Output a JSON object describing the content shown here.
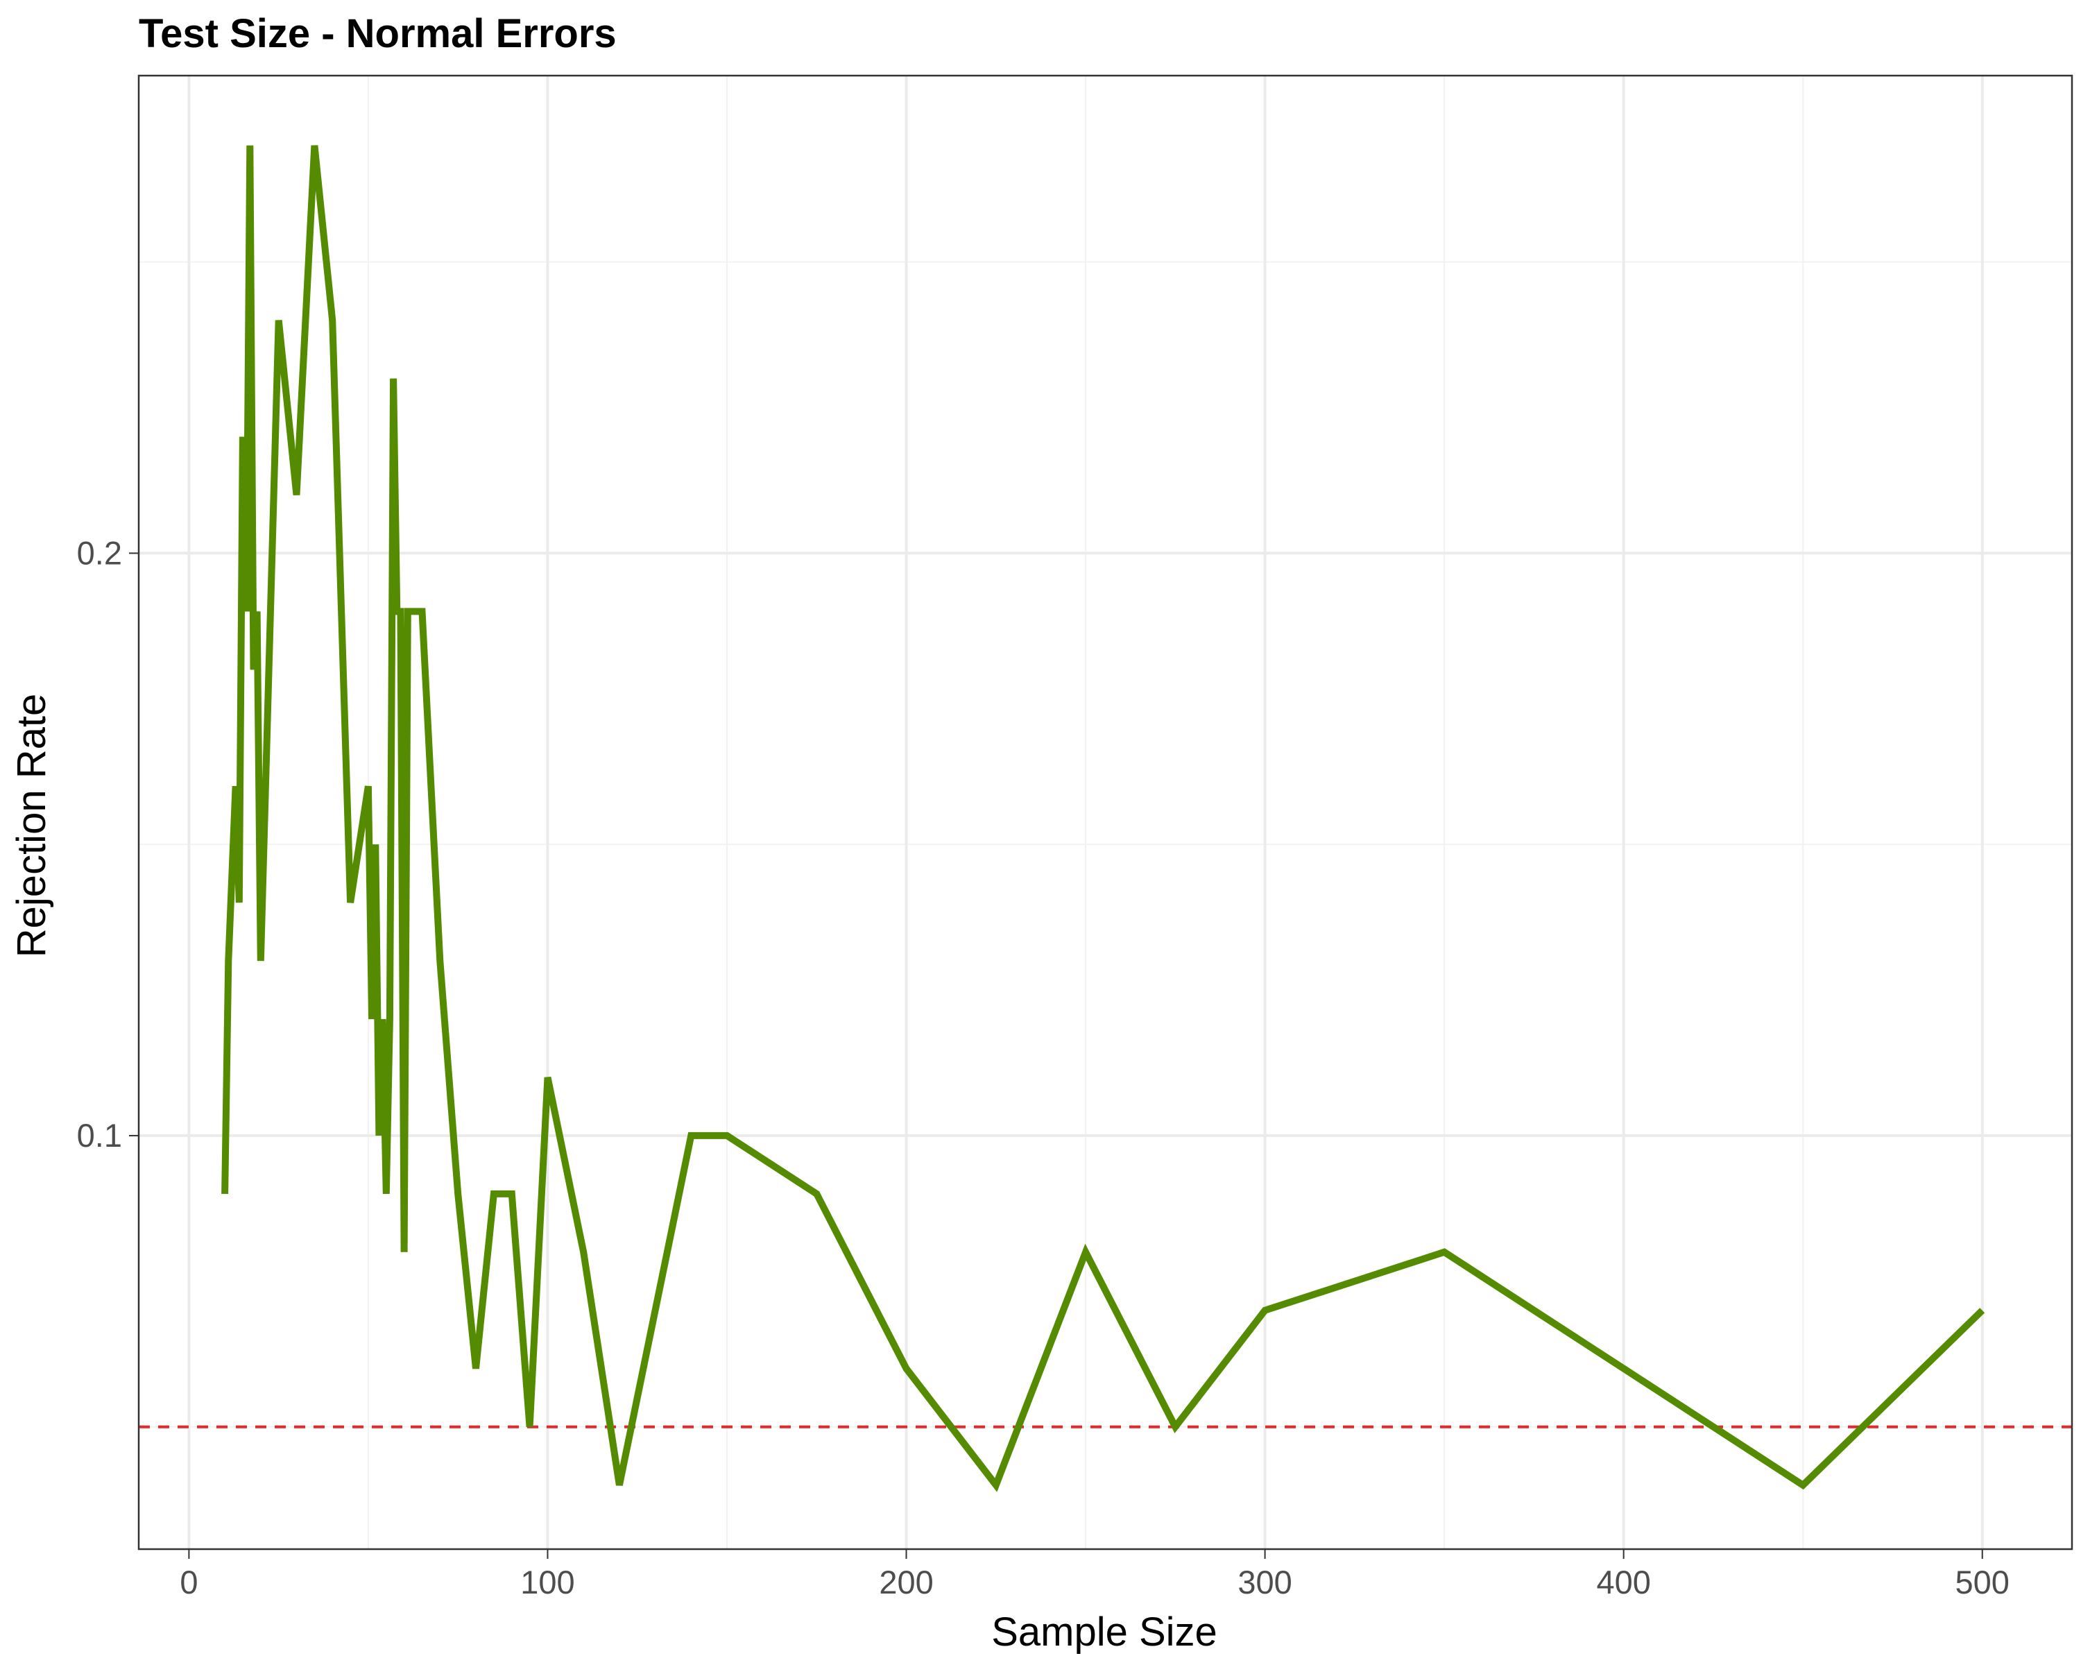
{
  "chart_data": {
    "type": "line",
    "title": "Test Size - Normal Errors",
    "xlabel": "Sample Size",
    "ylabel": "Rejection Rate",
    "xlim": [
      -14,
      525
    ],
    "ylim": [
      0.029,
      0.282
    ],
    "x_ticks": [
      0,
      100,
      200,
      300,
      400,
      500
    ],
    "x_tick_labels": [
      "0",
      "100",
      "200",
      "300",
      "400",
      "500"
    ],
    "y_ticks": [
      0.1,
      0.2
    ],
    "y_tick_labels": [
      "0.1",
      "0.2"
    ],
    "grid": true,
    "series": [
      {
        "color": "#548b00",
        "x": [
          10,
          11,
          13,
          14,
          15,
          16,
          17,
          18,
          19,
          20,
          25,
          30,
          35,
          40,
          45,
          50,
          51,
          52,
          53,
          54,
          55,
          56,
          57,
          58,
          59,
          60,
          61,
          62,
          63,
          65,
          70,
          75,
          80,
          85,
          90,
          95,
          100,
          110,
          120,
          130,
          140,
          150,
          175,
          200,
          225,
          250,
          275,
          300,
          350,
          400,
          450,
          500
        ],
        "y": [
          0.09,
          0.13,
          0.16,
          0.14,
          0.22,
          0.19,
          0.27,
          0.18,
          0.19,
          0.13,
          0.24,
          0.21,
          0.27,
          0.24,
          0.14,
          0.16,
          0.12,
          0.15,
          0.1,
          0.12,
          0.09,
          0.12,
          0.23,
          0.19,
          0.19,
          0.08,
          0.19,
          0.19,
          0.19,
          0.19,
          0.13,
          0.09,
          0.06,
          0.09,
          0.09,
          0.05,
          0.11,
          0.08,
          0.04,
          0.07,
          0.1,
          0.1,
          0.09,
          0.06,
          0.04,
          0.08,
          0.05,
          0.07,
          0.08,
          0.06,
          0.04,
          0.07
        ]
      }
    ],
    "reference_line": {
      "y": 0.05,
      "color": "#e8272a",
      "style": "dashed"
    }
  }
}
